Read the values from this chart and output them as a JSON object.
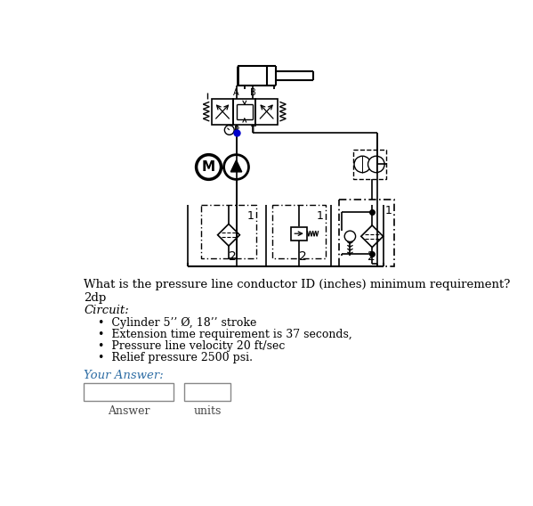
{
  "question": "What is the pressure line conductor ID (inches) minimum requirement?",
  "answer_label": "2dp",
  "circuit_label": "Circuit:",
  "bullets": [
    "Cylinder 5’’ Ø, 18’’ stroke",
    "Extension time requirement is 37 seconds,",
    "Pressure line velocity 20 ft/sec",
    "Relief pressure 2500 psi."
  ],
  "your_answer": "Your Answer:",
  "box1_label": "Answer",
  "box2_label": "units",
  "bg_color": "#ffffff",
  "lc": "#000000",
  "blue_dot": "#0000cc"
}
